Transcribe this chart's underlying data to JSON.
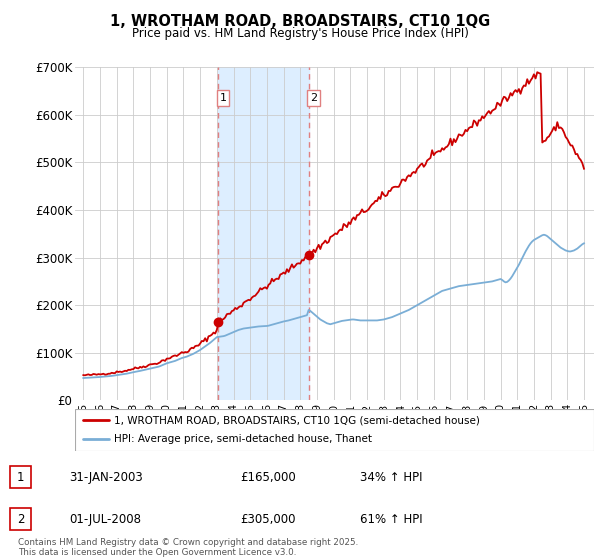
{
  "title": "1, WROTHAM ROAD, BROADSTAIRS, CT10 1QG",
  "subtitle": "Price paid vs. HM Land Registry's House Price Index (HPI)",
  "legend_line1": "1, WROTHAM ROAD, BROADSTAIRS, CT10 1QG (semi-detached house)",
  "legend_line2": "HPI: Average price, semi-detached house, Thanet",
  "footer": "Contains HM Land Registry data © Crown copyright and database right 2025.\nThis data is licensed under the Open Government Licence v3.0.",
  "table": [
    {
      "id": 1,
      "date": "31-JAN-2003",
      "price": "£165,000",
      "hpi": "34% ↑ HPI"
    },
    {
      "id": 2,
      "date": "01-JUL-2008",
      "price": "£305,000",
      "hpi": "61% ↑ HPI"
    }
  ],
  "sale1_x": 2003.08,
  "sale1_y": 165000,
  "sale2_x": 2008.5,
  "sale2_y": 305000,
  "ylim": [
    0,
    700000
  ],
  "yticks": [
    0,
    100000,
    200000,
    300000,
    400000,
    500000,
    600000,
    700000
  ],
  "ytick_labels": [
    "£0",
    "£100K",
    "£200K",
    "£300K",
    "£400K",
    "£500K",
    "£600K",
    "£700K"
  ],
  "xlim_start": 1994.5,
  "xlim_end": 2025.6,
  "red_color": "#cc0000",
  "blue_color": "#7aaed6",
  "shading_color": "#ddeeff",
  "vline_color": "#e08080",
  "background_color": "#ffffff",
  "grid_color": "#cccccc",
  "hpi_data_x": [
    1995.0,
    1995.1,
    1995.2,
    1995.3,
    1995.4,
    1995.5,
    1995.6,
    1995.7,
    1995.8,
    1995.9,
    1996.0,
    1996.1,
    1996.2,
    1996.3,
    1996.4,
    1996.5,
    1996.6,
    1996.7,
    1996.8,
    1996.9,
    1997.0,
    1997.1,
    1997.2,
    1997.3,
    1997.4,
    1997.5,
    1997.6,
    1997.7,
    1997.8,
    1997.9,
    1998.0,
    1998.1,
    1998.2,
    1998.3,
    1998.4,
    1998.5,
    1998.6,
    1998.7,
    1998.8,
    1998.9,
    1999.0,
    1999.1,
    1999.2,
    1999.3,
    1999.4,
    1999.5,
    1999.6,
    1999.7,
    1999.8,
    1999.9,
    2000.0,
    2000.1,
    2000.2,
    2000.3,
    2000.4,
    2000.5,
    2000.6,
    2000.7,
    2000.8,
    2000.9,
    2001.0,
    2001.1,
    2001.2,
    2001.3,
    2001.4,
    2001.5,
    2001.6,
    2001.7,
    2001.8,
    2001.9,
    2002.0,
    2002.1,
    2002.2,
    2002.3,
    2002.4,
    2002.5,
    2002.6,
    2002.7,
    2002.8,
    2002.9,
    2003.0,
    2003.1,
    2003.2,
    2003.3,
    2003.4,
    2003.5,
    2003.6,
    2003.7,
    2003.8,
    2003.9,
    2004.0,
    2004.1,
    2004.2,
    2004.3,
    2004.4,
    2004.5,
    2004.6,
    2004.7,
    2004.8,
    2004.9,
    2005.0,
    2005.1,
    2005.2,
    2005.3,
    2005.4,
    2005.5,
    2005.6,
    2005.7,
    2005.8,
    2005.9,
    2006.0,
    2006.1,
    2006.2,
    2006.3,
    2006.4,
    2006.5,
    2006.6,
    2006.7,
    2006.8,
    2006.9,
    2007.0,
    2007.1,
    2007.2,
    2007.3,
    2007.4,
    2007.5,
    2007.6,
    2007.7,
    2007.8,
    2007.9,
    2008.0,
    2008.1,
    2008.2,
    2008.3,
    2008.4,
    2008.5,
    2008.6,
    2008.7,
    2008.8,
    2008.9,
    2009.0,
    2009.1,
    2009.2,
    2009.3,
    2009.4,
    2009.5,
    2009.6,
    2009.7,
    2009.8,
    2009.9,
    2010.0,
    2010.1,
    2010.2,
    2010.3,
    2010.4,
    2010.5,
    2010.6,
    2010.7,
    2010.8,
    2010.9,
    2011.0,
    2011.1,
    2011.2,
    2011.3,
    2011.4,
    2011.5,
    2011.6,
    2011.7,
    2011.8,
    2011.9,
    2012.0,
    2012.1,
    2012.2,
    2012.3,
    2012.4,
    2012.5,
    2012.6,
    2012.7,
    2012.8,
    2012.9,
    2013.0,
    2013.1,
    2013.2,
    2013.3,
    2013.4,
    2013.5,
    2013.6,
    2013.7,
    2013.8,
    2013.9,
    2014.0,
    2014.1,
    2014.2,
    2014.3,
    2014.4,
    2014.5,
    2014.6,
    2014.7,
    2014.8,
    2014.9,
    2015.0,
    2015.1,
    2015.2,
    2015.3,
    2015.4,
    2015.5,
    2015.6,
    2015.7,
    2015.8,
    2015.9,
    2016.0,
    2016.1,
    2016.2,
    2016.3,
    2016.4,
    2016.5,
    2016.6,
    2016.7,
    2016.8,
    2016.9,
    2017.0,
    2017.1,
    2017.2,
    2017.3,
    2017.4,
    2017.5,
    2017.6,
    2017.7,
    2017.8,
    2017.9,
    2018.0,
    2018.1,
    2018.2,
    2018.3,
    2018.4,
    2018.5,
    2018.6,
    2018.7,
    2018.8,
    2018.9,
    2019.0,
    2019.1,
    2019.2,
    2019.3,
    2019.4,
    2019.5,
    2019.6,
    2019.7,
    2019.8,
    2019.9,
    2020.0,
    2020.1,
    2020.2,
    2020.3,
    2020.4,
    2020.5,
    2020.6,
    2020.7,
    2020.8,
    2020.9,
    2021.0,
    2021.1,
    2021.2,
    2021.3,
    2021.4,
    2021.5,
    2021.6,
    2021.7,
    2021.8,
    2021.9,
    2022.0,
    2022.1,
    2022.2,
    2022.3,
    2022.4,
    2022.5,
    2022.6,
    2022.7,
    2022.8,
    2022.9,
    2023.0,
    2023.1,
    2023.2,
    2023.3,
    2023.4,
    2023.5,
    2023.6,
    2023.7,
    2023.8,
    2023.9,
    2024.0,
    2024.1,
    2024.2,
    2024.3,
    2024.4,
    2024.5,
    2024.6,
    2024.7,
    2024.8,
    2024.9,
    2025.0
  ],
  "hpi_data_y": [
    47000,
    47200,
    47400,
    47600,
    47800,
    48000,
    48200,
    48400,
    48600,
    48800,
    49200,
    49500,
    49800,
    50100,
    50300,
    50500,
    51000,
    51500,
    52000,
    52500,
    53000,
    53500,
    54000,
    54500,
    55000,
    55500,
    56200,
    57000,
    57800,
    58600,
    59400,
    60000,
    60600,
    61200,
    62000,
    62800,
    63600,
    64400,
    65200,
    66000,
    66800,
    67600,
    68400,
    69200,
    70000,
    70800,
    72000,
    73500,
    75000,
    76500,
    78000,
    79000,
    80000,
    81000,
    82000,
    83000,
    84500,
    86000,
    87500,
    89000,
    90000,
    91000,
    92000,
    93500,
    95000,
    96500,
    98000,
    100000,
    102000,
    104000,
    106000,
    108500,
    111000,
    113500,
    116000,
    118500,
    121000,
    124000,
    127000,
    130000,
    133000,
    133500,
    134000,
    134500,
    135000,
    136000,
    137500,
    139000,
    140500,
    142000,
    143500,
    145000,
    146500,
    148000,
    149000,
    150000,
    151000,
    151500,
    152000,
    152500,
    153000,
    153500,
    154000,
    154500,
    155000,
    155300,
    155600,
    155800,
    156000,
    156200,
    156400,
    157000,
    158000,
    159000,
    160000,
    161000,
    162000,
    163000,
    164000,
    165000,
    165800,
    166500,
    167200,
    168000,
    169000,
    170000,
    171000,
    172000,
    173000,
    174000,
    175000,
    176000,
    177000,
    178000,
    179000,
    190000,
    188000,
    185000,
    182000,
    179000,
    176000,
    173000,
    170000,
    168000,
    166000,
    164000,
    162000,
    161000,
    160000,
    161000,
    162000,
    163000,
    164000,
    165000,
    166000,
    167000,
    167500,
    168000,
    168500,
    169000,
    169500,
    170000,
    170000,
    169500,
    169000,
    168500,
    168000,
    168000,
    168000,
    168000,
    168000,
    168000,
    168000,
    168000,
    168000,
    168000,
    168000,
    168500,
    169000,
    169500,
    170000,
    171000,
    172000,
    173000,
    174000,
    175000,
    176500,
    178000,
    179500,
    181000,
    182500,
    184000,
    185500,
    187000,
    188500,
    190000,
    192000,
    194000,
    196000,
    198000,
    200000,
    202000,
    204000,
    206000,
    208000,
    210000,
    212000,
    214000,
    216000,
    218000,
    220000,
    222000,
    224000,
    226000,
    228000,
    230000,
    231000,
    232000,
    233000,
    234000,
    235000,
    236000,
    237000,
    238000,
    239000,
    240000,
    240500,
    241000,
    241500,
    242000,
    242500,
    243000,
    243500,
    244000,
    244500,
    245000,
    245500,
    246000,
    246500,
    247000,
    247500,
    248000,
    248500,
    249000,
    249500,
    250000,
    251000,
    252000,
    253000,
    254000,
    255000,
    253000,
    250000,
    248000,
    249000,
    252000,
    256000,
    261000,
    267000,
    273000,
    279000,
    285000,
    292000,
    299000,
    306000,
    313000,
    319000,
    325000,
    330000,
    334000,
    337000,
    339000,
    341000,
    343000,
    345000,
    347000,
    348000,
    347000,
    345000,
    342000,
    339000,
    336000,
    333000,
    330000,
    327000,
    324000,
    321000,
    319000,
    317000,
    315000,
    314000,
    313000,
    313000,
    314000,
    315000,
    317000,
    319000,
    322000,
    325000,
    328000,
    330000
  ]
}
